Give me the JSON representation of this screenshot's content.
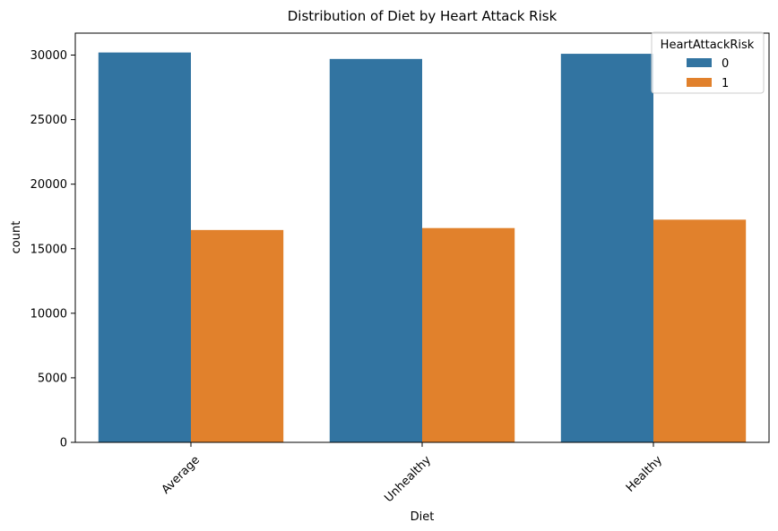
{
  "chart_data": {
    "type": "bar",
    "title": "Distribution of Diet by Heart Attack Risk",
    "xlabel": "Diet",
    "ylabel": "count",
    "categories": [
      "Average",
      "Unhealthy",
      "Healthy"
    ],
    "series": [
      {
        "name": "0",
        "color": "#3274a1",
        "values": [
          30200,
          29700,
          30100
        ]
      },
      {
        "name": "1",
        "color": "#e1812c",
        "values": [
          16450,
          16600,
          17250
        ]
      }
    ],
    "ylim": [
      0,
      31700
    ],
    "yticks": [
      0,
      5000,
      10000,
      15000,
      20000,
      25000,
      30000
    ],
    "legend": {
      "title": "HeartAttackRisk",
      "placement": "top-right"
    },
    "grid": false
  }
}
